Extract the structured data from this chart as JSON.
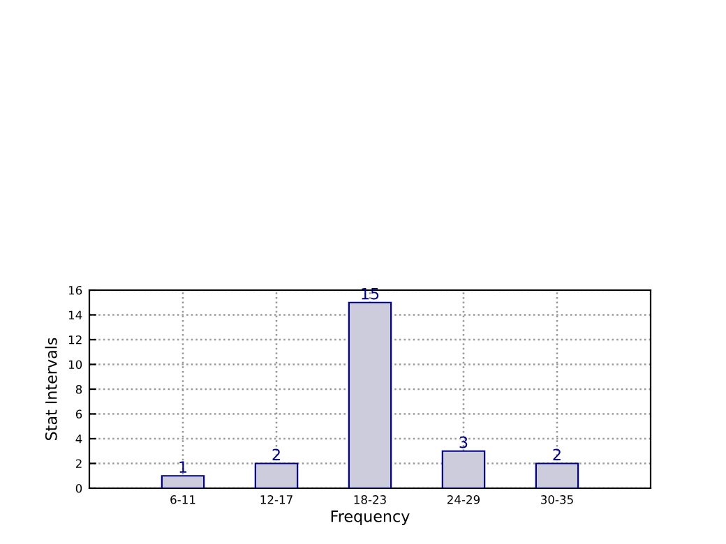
{
  "chart_data": {
    "type": "bar",
    "xlabel": "Frequency",
    "ylabel": "Stat Intervals",
    "categories": [
      "6-11",
      "12-17",
      "18-23",
      "24-29",
      "30-35"
    ],
    "series": [
      {
        "color": "#ccccdd",
        "values": [
          1,
          2,
          15,
          3,
          2
        ]
      }
    ],
    "ylim": [
      0,
      16
    ],
    "yticks": [
      0,
      2,
      4,
      6,
      8,
      10,
      12,
      14,
      16
    ],
    "grid": true,
    "data_labels": true,
    "legend": false
  }
}
